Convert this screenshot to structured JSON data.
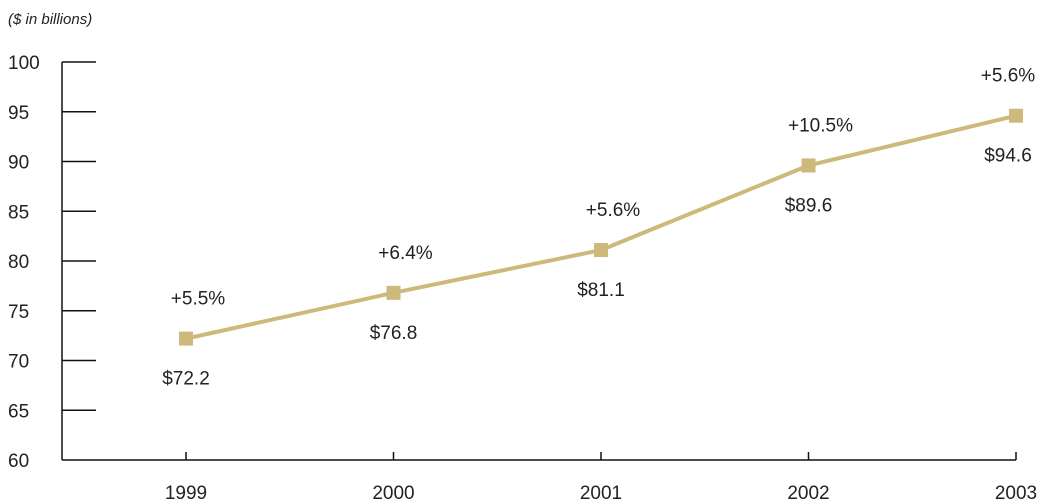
{
  "chart_data": {
    "type": "line",
    "unit_note": "($ in billions)",
    "title": "",
    "xlabel": "",
    "ylabel": "",
    "categories": [
      "1999",
      "2000",
      "2001",
      "2002",
      "2003"
    ],
    "series": [
      {
        "values": [
          72.2,
          76.8,
          81.1,
          89.6,
          94.6
        ],
        "value_labels": [
          "$72.2",
          "$76.8",
          "$81.1",
          "$89.6",
          "$94.6"
        ],
        "change_labels": [
          "+5.5%",
          "+6.4%",
          "+5.6%",
          "+10.5%",
          "+5.6%"
        ]
      }
    ],
    "ylim": [
      60,
      100
    ],
    "yticks": [
      "60",
      "65",
      "70",
      "75",
      "80",
      "85",
      "90",
      "95",
      "100"
    ],
    "grid": false,
    "legend": "none",
    "colors": {
      "series": "#CDB97A",
      "axis": "#111111",
      "text": "#222222"
    }
  }
}
